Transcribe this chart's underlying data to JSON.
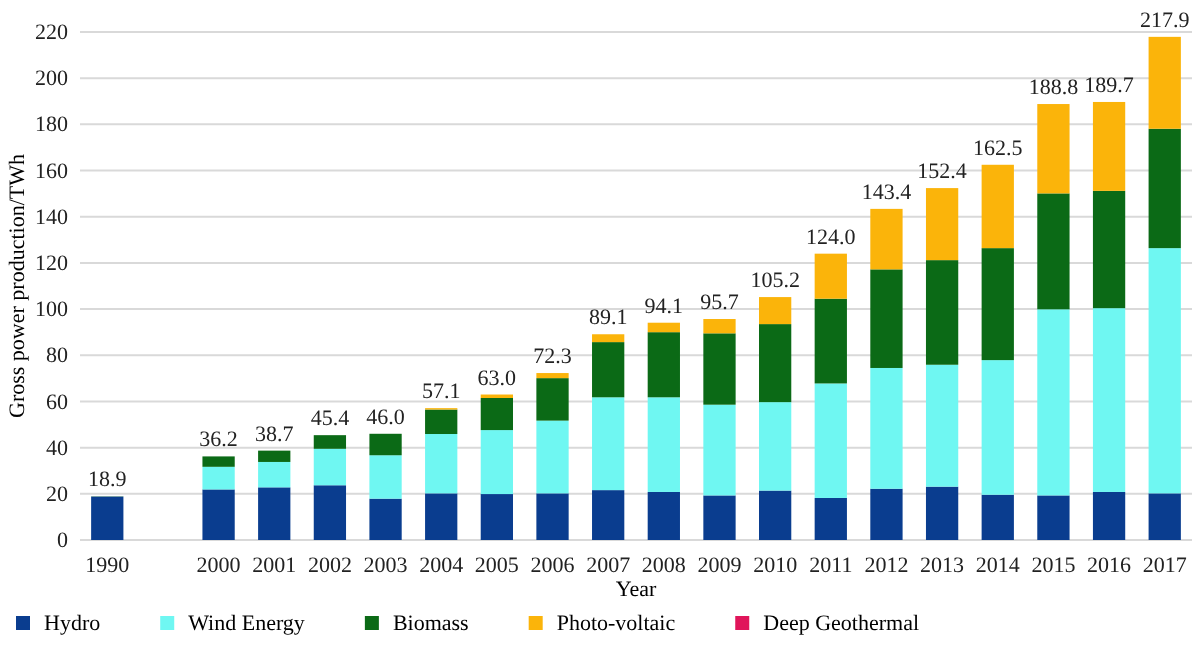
{
  "chart_data": {
    "type": "bar",
    "stacked": true,
    "xlabel": "Year",
    "ylabel": "Gross power production/TWh",
    "categories": [
      "1990",
      null,
      "2000",
      "2001",
      "2002",
      "2003",
      "2004",
      "2005",
      "2006",
      "2007",
      "2008",
      "2009",
      "2010",
      "2011",
      "2012",
      "2013",
      "2014",
      "2015",
      "2016",
      "2017"
    ],
    "series": [
      {
        "name": "Hydro",
        "color": "#0a3d8f",
        "values": [
          18.8,
          null,
          21.9,
          22.8,
          23.7,
          17.9,
          20.2,
          19.9,
          20.2,
          21.6,
          20.8,
          19.3,
          21.4,
          18.2,
          22.2,
          23.1,
          19.6,
          19.3,
          20.8,
          20.2
        ]
      },
      {
        "name": "Wind Energy",
        "color": "#6ff7f2",
        "values": [
          0,
          null,
          9.8,
          11.0,
          15.8,
          18.8,
          25.7,
          27.7,
          31.5,
          40.2,
          41.0,
          39.3,
          38.3,
          49.6,
          52.3,
          52.8,
          58.3,
          80.6,
          79.6,
          106.2
        ]
      },
      {
        "name": "Biomass",
        "color": "#0b6a16",
        "values": [
          0.1,
          null,
          4.5,
          4.9,
          5.9,
          9.3,
          10.6,
          13.9,
          18.4,
          23.9,
          28.2,
          30.9,
          33.8,
          36.7,
          42.7,
          45.3,
          48.5,
          50.2,
          50.8,
          51.7
        ]
      },
      {
        "name": "Photo-voltaic",
        "color": "#fbb40a",
        "values": [
          0,
          null,
          null,
          null,
          null,
          null,
          0.6,
          1.5,
          2.2,
          3.4,
          4.1,
          6.2,
          11.7,
          19.5,
          26.2,
          31.2,
          36.1,
          38.7,
          38.5,
          39.8
        ]
      },
      {
        "name": "Deep Geothermal",
        "color": "#e0155a",
        "values": [
          0,
          null,
          0,
          0,
          0,
          0,
          0,
          0,
          0,
          0,
          0,
          0,
          0,
          0,
          0,
          0,
          0,
          0,
          0,
          0
        ]
      }
    ],
    "totals": [
      "18.9",
      null,
      "36.2",
      "38.7",
      "45.4",
      "46.0",
      "57.1",
      "63.0",
      "72.3",
      "89.1",
      "94.1",
      "95.7",
      "105.2",
      "124.0",
      "143.4",
      "152.4",
      "162.5",
      "188.8",
      "189.7",
      "217.9"
    ],
    "ylim": [
      0,
      220
    ],
    "yticks": [
      0,
      20,
      40,
      60,
      80,
      100,
      120,
      140,
      160,
      180,
      200,
      220
    ],
    "grid": "y",
    "legend": "bottom"
  }
}
